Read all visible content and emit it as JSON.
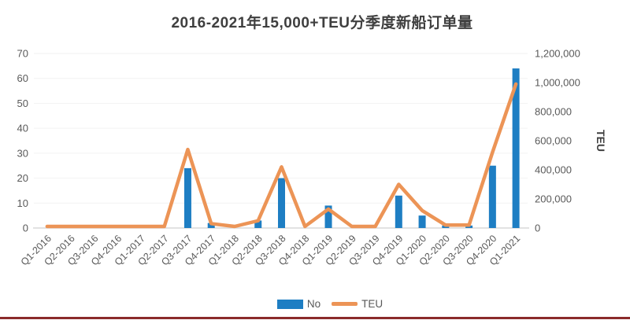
{
  "title": "2016-2021年15,000+TEU分季度新船订单量",
  "colors": {
    "bar": "#1E7EC3",
    "line": "#EC9456",
    "axis_text": "#595959",
    "title_text": "#3F3F3F",
    "axis_line": "#D9D9D9",
    "gridline": "#F2F2F2",
    "bottom_rule": "#8B2A2A"
  },
  "legend": {
    "items": [
      {
        "label": "No",
        "type": "bar"
      },
      {
        "label": "TEU",
        "type": "line"
      }
    ],
    "position": "bottom"
  },
  "chart_data": {
    "type": "bar",
    "subtype": "combo bar+line, dual axis",
    "title": "2016-2021年15,000+TEU分季度新船订单量",
    "categories": [
      "Q1-2016",
      "Q2-2016",
      "Q3-2016",
      "Q4-2016",
      "Q1-2017",
      "Q2-2017",
      "Q3-2017",
      "Q4-2017",
      "Q1-2018",
      "Q2-2018",
      "Q3-2018",
      "Q4-2018",
      "Q1-2019",
      "Q2-2019",
      "Q3-2019",
      "Q4-2019",
      "Q1-2020",
      "Q2-2020",
      "Q3-2020",
      "Q4-2020",
      "Q1-2021"
    ],
    "series": [
      {
        "name": "No",
        "type": "bar",
        "axis": "left",
        "values": [
          0,
          0,
          0,
          0,
          0,
          0,
          24,
          2,
          0,
          3,
          20,
          0,
          9,
          0,
          0,
          13,
          5,
          1,
          1,
          25,
          64
        ]
      },
      {
        "name": "TEU",
        "type": "line",
        "axis": "right",
        "values": [
          0,
          0,
          0,
          0,
          0,
          0,
          540000,
          30000,
          0,
          50000,
          420000,
          0,
          130000,
          0,
          0,
          300000,
          120000,
          20000,
          20000,
          520000,
          990000
        ]
      }
    ],
    "left_axis": {
      "min": 0,
      "max": 70,
      "step": 10,
      "ticks": [
        "0",
        "10",
        "20",
        "30",
        "40",
        "50",
        "60",
        "70"
      ]
    },
    "right_axis": {
      "min": 0,
      "max": 1200000,
      "step": 200000,
      "title": "TEU",
      "ticks": [
        "0",
        "200,000",
        "400,000",
        "600,000",
        "800,000",
        "1,000,000",
        "1,200,000"
      ]
    },
    "grid": "faint horizontal",
    "legend_position": "bottom"
  }
}
